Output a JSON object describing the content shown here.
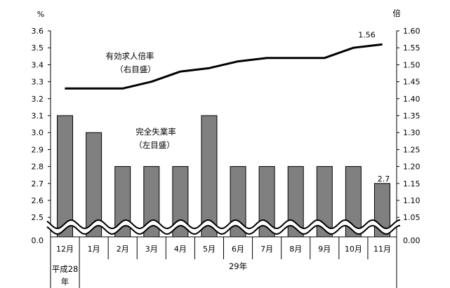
{
  "chart_data": {
    "type": "bar+line",
    "left_axis": {
      "unit": "%",
      "ticks": [
        "2.5",
        "2.6",
        "2.7",
        "2.8",
        "2.9",
        "3.0",
        "3.1",
        "3.2",
        "3.3",
        "3.4",
        "3.5",
        "3.6"
      ],
      "zero_label": "0.0",
      "ylim": [
        2.45,
        3.6
      ]
    },
    "right_axis": {
      "unit": "倍",
      "ticks": [
        "1.05",
        "1.10",
        "1.15",
        "1.20",
        "1.25",
        "1.30",
        "1.35",
        "1.40",
        "1.45",
        "1.50",
        "1.55",
        "1.60"
      ],
      "zero_label": "0.00",
      "ylim": [
        1.025,
        1.6
      ]
    },
    "categories": [
      "12月",
      "1月",
      "2月",
      "3月",
      "4月",
      "5月",
      "6月",
      "7月",
      "8月",
      "9月",
      "10月",
      "11月"
    ],
    "year_labels": {
      "first": "平成28\n年",
      "rest": "29年"
    },
    "series": [
      {
        "name_lines": [
          "完全失業率",
          "（左目盛）"
        ],
        "type": "bar",
        "axis": "left",
        "color": "#808080",
        "values": [
          3.1,
          3.0,
          2.8,
          2.8,
          2.8,
          3.1,
          2.8,
          2.8,
          2.8,
          2.8,
          2.8,
          2.7
        ]
      },
      {
        "name_lines": [
          "有効求人倍率",
          "（右目盛）"
        ],
        "type": "line",
        "axis": "right",
        "color": "#000000",
        "values": [
          1.43,
          1.43,
          1.43,
          1.45,
          1.48,
          1.49,
          1.51,
          1.52,
          1.52,
          1.52,
          1.55,
          1.56
        ]
      }
    ],
    "data_labels": {
      "line_last": "1.56",
      "bar_last": "2.7"
    }
  }
}
